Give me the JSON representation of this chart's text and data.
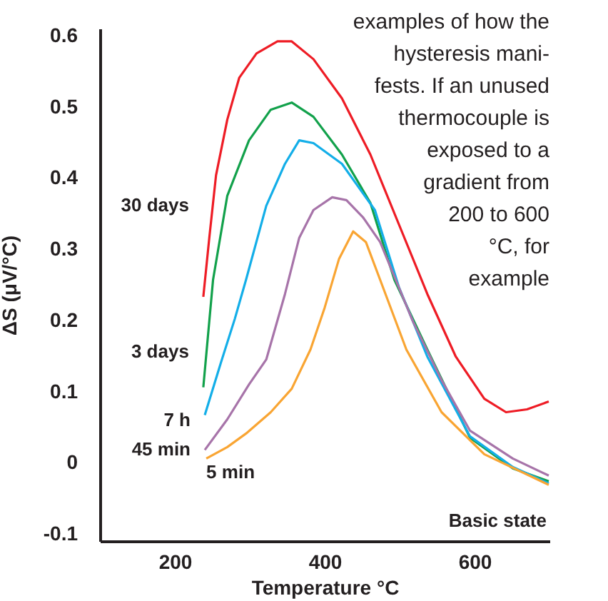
{
  "chart_data": {
    "type": "line",
    "xlabel": "Temperature °C",
    "ylabel": "ΔS (μV/°C)",
    "xlim": [
      100,
      700
    ],
    "xticks": [
      200,
      400,
      600
    ],
    "ylim": [
      -0.11,
      0.61
    ],
    "yticks": [
      -0.1,
      0,
      0.1,
      0.2,
      0.3,
      0.4,
      0.5,
      0.6
    ],
    "grid": false,
    "legend": false,
    "marker": "none",
    "line_style": "solid",
    "annotations": [
      "examples of how the\nhysteresis mani-\nfests. If an unused\nthermocouple is\nexposed to a\ngradient from\n200 to 600\n°C, for\nexample",
      "Basic state"
    ],
    "series": [
      {
        "name": "30 days",
        "color": "#ee1c25",
        "x": [
          238,
          246,
          255,
          270,
          286,
          309,
          337,
          356,
          385,
          423,
          461,
          499,
          537,
          575,
          613,
          642,
          670,
          699
        ],
        "values": [
          0.233,
          0.316,
          0.404,
          0.482,
          0.541,
          0.575,
          0.592,
          0.592,
          0.567,
          0.512,
          0.433,
          0.335,
          0.237,
          0.149,
          0.09,
          0.071,
          0.075,
          0.086
        ]
      },
      {
        "name": "3 days",
        "color": "#12a14b",
        "x": [
          238,
          251,
          270,
          299,
          328,
          356,
          385,
          423,
          461,
          493,
          537,
          594,
          651,
          699
        ],
        "values": [
          0.106,
          0.257,
          0.375,
          0.453,
          0.496,
          0.506,
          0.486,
          0.433,
          0.365,
          0.257,
          0.159,
          0.035,
          -0.008,
          -0.026
        ]
      },
      {
        "name": "7 h",
        "color": "#13aee8",
        "x": [
          240,
          261,
          280,
          295,
          322,
          347,
          366,
          385,
          423,
          467,
          499,
          537,
          594,
          651,
          699
        ],
        "values": [
          0.067,
          0.139,
          0.202,
          0.257,
          0.361,
          0.42,
          0.453,
          0.449,
          0.42,
          0.355,
          0.247,
          0.149,
          0.037,
          -0.006,
          -0.029
        ]
      },
      {
        "name": "45 min",
        "color": "#a774a9",
        "x": [
          240,
          270,
          299,
          322,
          347,
          366,
          385,
          410,
          429,
          451,
          474,
          518,
          556,
          594,
          651,
          699
        ],
        "values": [
          0.018,
          0.061,
          0.11,
          0.145,
          0.237,
          0.316,
          0.355,
          0.373,
          0.369,
          0.345,
          0.31,
          0.198,
          0.116,
          0.045,
          0.006,
          -0.018
        ]
      },
      {
        "name": "5 min",
        "color": "#f9a533",
        "x": [
          242,
          270,
          295,
          328,
          356,
          381,
          400,
          419,
          438,
          455,
          474,
          509,
          556,
          613,
          699
        ],
        "values": [
          0.006,
          0.022,
          0.041,
          0.071,
          0.104,
          0.159,
          0.218,
          0.286,
          0.325,
          0.31,
          0.257,
          0.159,
          0.071,
          0.012,
          -0.031
        ]
      }
    ]
  }
}
